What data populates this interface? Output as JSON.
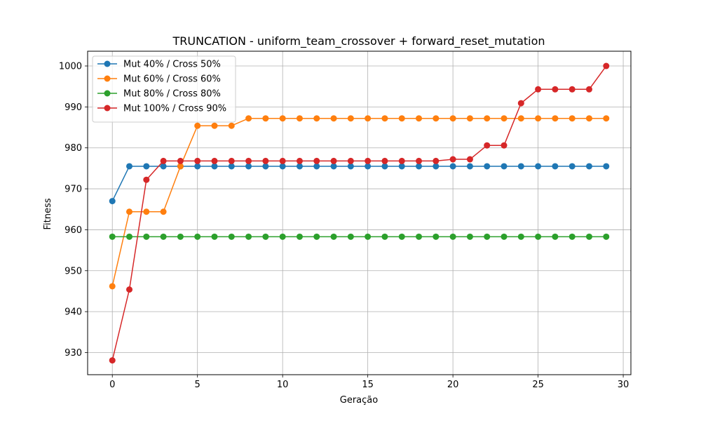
{
  "chart_data": {
    "type": "line",
    "title": "TRUNCATION - uniform_team_crossover + forward_reset_mutation",
    "xlabel": "Geração",
    "ylabel": "Fitness",
    "xlim": [
      -1.45,
      30.45
    ],
    "ylim": [
      924.6,
      1003.6
    ],
    "xticks": [
      0,
      5,
      10,
      15,
      20,
      25,
      30
    ],
    "yticks": [
      930,
      940,
      950,
      960,
      970,
      980,
      990,
      1000
    ],
    "grid": true,
    "legend_position": "top-left",
    "x": [
      0,
      1,
      2,
      3,
      4,
      5,
      6,
      7,
      8,
      9,
      10,
      11,
      12,
      13,
      14,
      15,
      16,
      17,
      18,
      19,
      20,
      21,
      22,
      23,
      24,
      25,
      26,
      27,
      28,
      29
    ],
    "series": [
      {
        "name": "Mut 40% / Cross 50%",
        "color": "#1f77b4",
        "values": [
          967.0,
          975.5,
          975.5,
          975.5,
          975.5,
          975.5,
          975.5,
          975.5,
          975.5,
          975.5,
          975.5,
          975.5,
          975.5,
          975.5,
          975.5,
          975.5,
          975.5,
          975.5,
          975.5,
          975.5,
          975.5,
          975.5,
          975.5,
          975.5,
          975.5,
          975.5,
          975.5,
          975.5,
          975.5,
          975.5
        ]
      },
      {
        "name": "Mut 60% / Cross 60%",
        "color": "#ff7f0e",
        "values": [
          946.2,
          964.4,
          964.4,
          964.4,
          975.5,
          985.4,
          985.4,
          985.4,
          987.2,
          987.2,
          987.2,
          987.2,
          987.2,
          987.2,
          987.2,
          987.2,
          987.2,
          987.2,
          987.2,
          987.2,
          987.2,
          987.2,
          987.2,
          987.2,
          987.2,
          987.2,
          987.2,
          987.2,
          987.2,
          987.2
        ]
      },
      {
        "name": "Mut 80% / Cross 80%",
        "color": "#2ca02c",
        "values": [
          958.3,
          958.3,
          958.3,
          958.3,
          958.3,
          958.3,
          958.3,
          958.3,
          958.3,
          958.3,
          958.3,
          958.3,
          958.3,
          958.3,
          958.3,
          958.3,
          958.3,
          958.3,
          958.3,
          958.3,
          958.3,
          958.3,
          958.3,
          958.3,
          958.3,
          958.3,
          958.3,
          958.3,
          958.3,
          958.3
        ]
      },
      {
        "name": "Mut 100% / Cross 90%",
        "color": "#d62728",
        "values": [
          928.1,
          945.4,
          972.2,
          976.8,
          976.8,
          976.8,
          976.8,
          976.8,
          976.8,
          976.8,
          976.8,
          976.8,
          976.8,
          976.8,
          976.8,
          976.8,
          976.8,
          976.8,
          976.8,
          976.8,
          977.2,
          977.2,
          980.6,
          980.6,
          990.9,
          994.3,
          994.3,
          994.3,
          994.3,
          1000.0
        ]
      }
    ]
  }
}
